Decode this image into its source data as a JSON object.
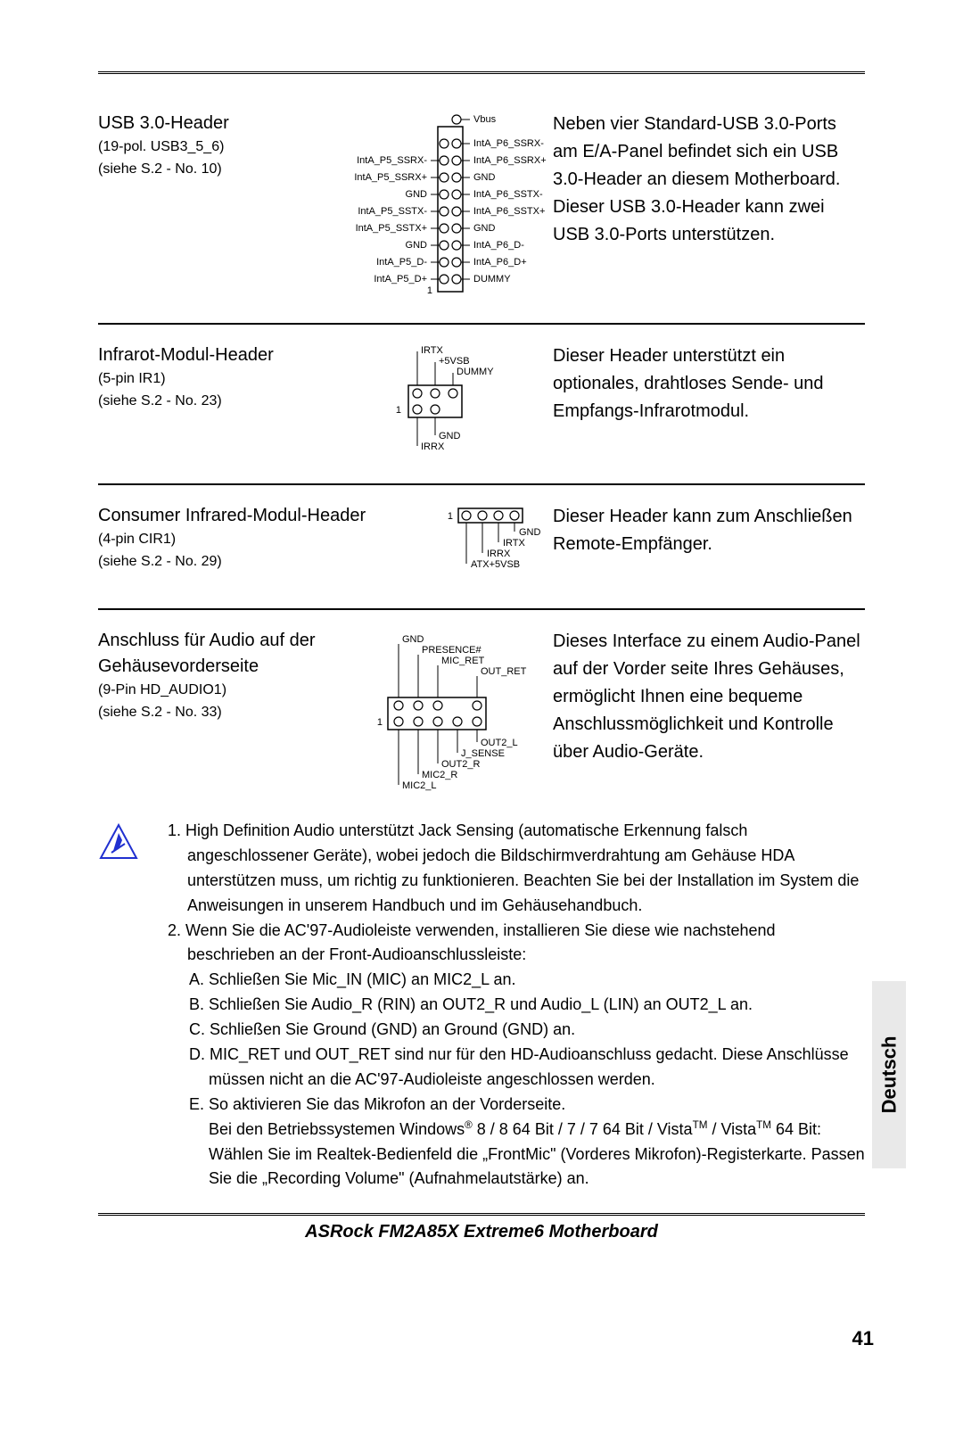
{
  "language_tab": "Deutsch",
  "page_number": "41",
  "footer_title": "ASRock  FM2A85X Extreme6  Motherboard",
  "sections": {
    "usb": {
      "title": "USB 3.0-Header",
      "sub1": "(19-pol. USB3_5_6)",
      "sub2": "(siehe S.2 - No. 10)",
      "desc": "Neben vier Standard-USB 3.0-Ports am E/A-Panel befindet sich ein USB 3.0-Header an diesem Motherboard. Dieser USB 3.0-Header kann zwei USB 3.0-Ports unterstützen.",
      "diag": {
        "left_labels": [
          "",
          "",
          "IntA_P5_SSRX-",
          "IntA_P5_SSRX+",
          "GND",
          "IntA_P5_SSTX-",
          "IntA_P5_SSTX+",
          "GND",
          "IntA_P5_D-",
          "IntA_P5_D+"
        ],
        "right_labels": [
          "Vbus",
          "IntA_P6_SSRX-",
          "IntA_P6_SSRX+",
          "GND",
          "IntA_P6_SSTX-",
          "IntA_P6_SSTX+",
          "GND",
          "IntA_P6_D-",
          "IntA_P6_D+",
          "DUMMY"
        ]
      }
    },
    "ir": {
      "title": "Infrarot-Modul-Header",
      "sub1": "(5-pin IR1)",
      "sub2": "(siehe S.2 - No. 23)",
      "desc": "Dieser Header unterstützt ein optionales, drahtloses Sende- und Empfangs-Infrarotmodul.",
      "diag": {
        "top": [
          "IRTX",
          "+5VSB",
          "DUMMY"
        ],
        "bottom": [
          "IRRX",
          "GND"
        ]
      }
    },
    "cir": {
      "title": "Consumer Infrared-Modul-Header",
      "sub1": "(4-pin CIR1)",
      "sub2": "(siehe S.2 - No. 29)",
      "desc": "Dieser Header kann zum Anschließen Remote-Empfänger.",
      "diag": {
        "labels": [
          "ATX+5VSB",
          "IRRX",
          "IRTX",
          "GND"
        ]
      }
    },
    "audio": {
      "title": "Anschluss für Audio auf der Gehäusevorderseite",
      "sub1": "(9-Pin  HD_AUDIO1)",
      "sub2": "(siehe S.2 - No. 33)",
      "desc": "Dieses Interface zu einem Audio-Panel auf der Vorder seite Ihres Gehäuses, ermöglicht Ihnen eine bequeme Anschlussmöglichkeit und Kontrolle über Audio-Geräte.",
      "diag": {
        "top": [
          "GND",
          "PRESENCE#",
          "MIC_RET",
          "OUT_RET"
        ],
        "bottom": [
          "MIC2_L",
          "MIC2_R",
          "OUT2_R",
          "J_SENSE",
          "OUT2_L"
        ]
      }
    }
  },
  "notes": {
    "n1": "1. High Definition Audio unterstützt Jack Sensing (automatische Erkennung falsch angeschlossener Geräte), wobei jedoch die Bildschirmverdrahtung am Gehäuse HDA unterstützen muss, um richtig zu funktionieren. Beachten Sie bei der Installation im System die Anweisungen in unserem Handbuch und im Gehäusehandbuch.",
    "n2": "2. Wenn Sie die AC'97-Audioleiste verwenden, installieren Sie diese wie nachstehend beschrieben an der Front-Audioanschlussleiste:",
    "nA": "A. Schließen Sie Mic_IN (MIC) an MIC2_L an.",
    "nB": "B. Schließen Sie Audio_R (RIN) an OUT2_R und Audio_L (LIN) an OUT2_L an.",
    "nC": "C. Schließen Sie Ground (GND) an Ground (GND) an.",
    "nD": "D. MIC_RET und OUT_RET sind nur für den HD-Audioanschluss gedacht. Diese Anschlüsse müssen nicht an die AC'97-Audioleiste angeschlossen werden.",
    "nE": "E. So aktivieren Sie das Mikrofon an der Vorderseite.",
    "nE2a": "Bei den Betriebssystemen Windows",
    "nE2b": " 8 / 8 64 Bit / 7 / 7 64 Bit / Vista",
    "nE2c": " / Vista",
    "nE2d": " 64 Bit:",
    "nE3": "Wählen Sie im Realtek-Bedienfeld die „FrontMic\" (Vorderes Mikrofon)-Registerkarte. Passen Sie die „Recording Volume\" (Aufnahmelautstärke) an."
  }
}
